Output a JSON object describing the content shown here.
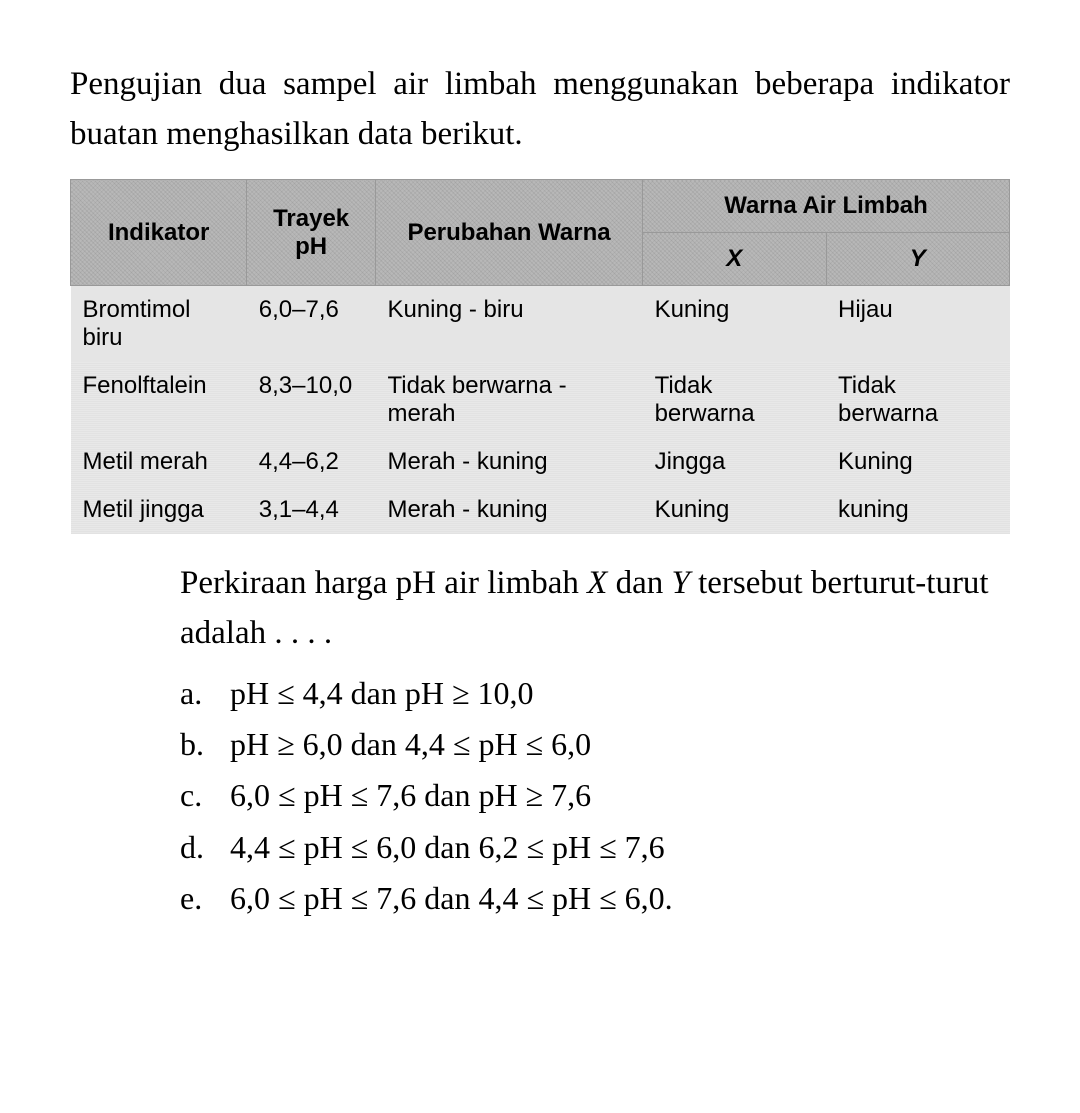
{
  "intro": "Pengujian dua sampel air limbah menggunakan beberapa indikator buatan menghasilkan data berikut.",
  "table": {
    "headers": {
      "indikator": "Indikator",
      "trayek": "Trayek pH",
      "perubahan": "Perubahan Warna",
      "warna_air": "Warna Air Limbah",
      "x": "X",
      "y": "Y"
    },
    "rows": [
      {
        "indikator": "Bromtimol biru",
        "trayek": "6,0–7,6",
        "perubahan": "Kuning - biru",
        "x": "Kuning",
        "y": "Hijau"
      },
      {
        "indikator": "Fenolftalein",
        "trayek": "8,3–10,0",
        "perubahan": "Tidak berwarna - merah",
        "x": "Tidak berwarna",
        "y": "Tidak berwarna"
      },
      {
        "indikator": "Metil merah",
        "trayek": "4,4–6,2",
        "perubahan": "Merah - kuning",
        "x": "Jingga",
        "y": "Kuning"
      },
      {
        "indikator": "Metil jingga",
        "trayek": "3,1–4,4",
        "perubahan": "Merah - kuning",
        "x": "Kuning",
        "y": "kuning"
      }
    ]
  },
  "conclusion_prefix": "Perkiraan harga pH air limbah ",
  "conclusion_x": "X",
  "conclusion_mid": " dan ",
  "conclusion_y": "Y",
  "conclusion_suffix": " tersebut berturut-turut adalah . . . .",
  "options": [
    {
      "label": "a.",
      "text": "pH ≤ 4,4 dan pH ≥ 10,0"
    },
    {
      "label": "b.",
      "text": "pH ≥ 6,0 dan 4,4 ≤ pH ≤ 6,0"
    },
    {
      "label": "c.",
      "text": "6,0 ≤ pH ≤ 7,6 dan pH ≥ 7,6"
    },
    {
      "label": "d.",
      "text": "4,4 ≤ pH ≤ 6,0 dan 6,2 ≤ pH ≤ 7,6"
    },
    {
      "label": "e.",
      "text": "6,0 ≤ pH ≤ 7,6 dan 4,4 ≤ pH ≤ 6,0."
    }
  ],
  "colors": {
    "header_bg": "#b8b8b8",
    "cell_bg": "#e8e8e8",
    "text": "#000000",
    "background": "#ffffff"
  },
  "typography": {
    "body_font": "Times New Roman",
    "table_font": "Arial",
    "intro_size": 33,
    "table_header_size": 24,
    "table_cell_size": 24,
    "conclusion_size": 33,
    "options_size": 32
  }
}
